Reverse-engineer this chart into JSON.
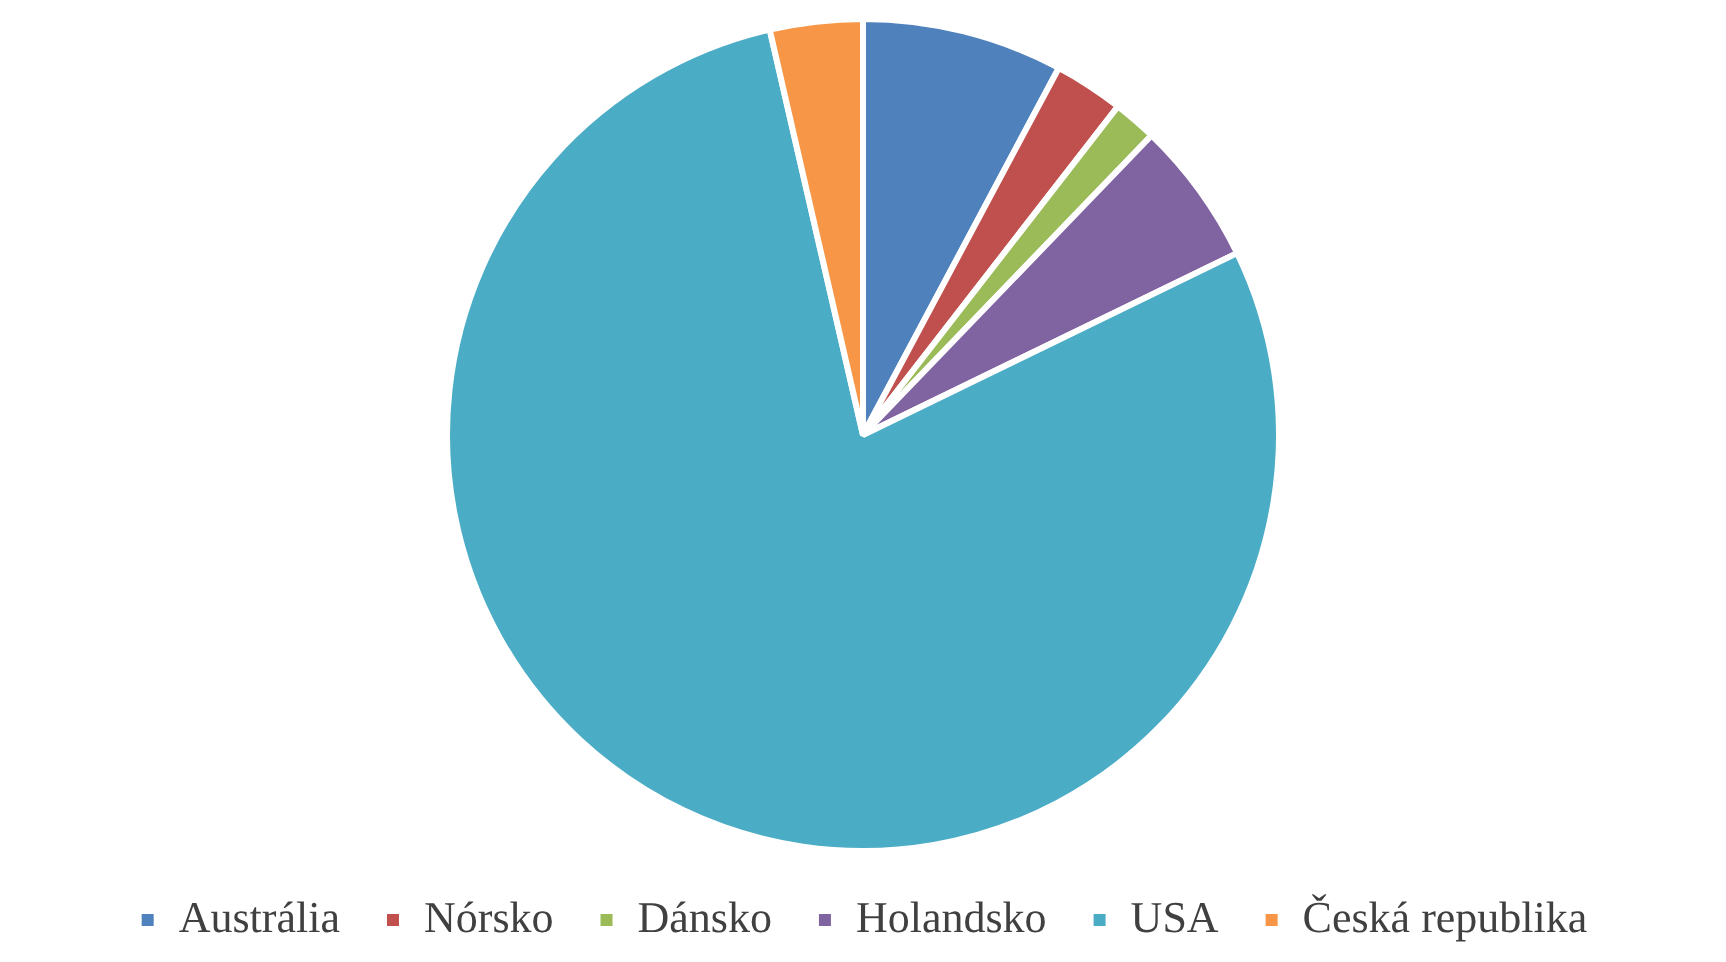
{
  "chart_data": {
    "type": "pie",
    "categories": [
      "Austrália",
      "Nórsko",
      "Dánsko",
      "Holandsko",
      "USA",
      "Česká republika"
    ],
    "values": [
      7.8,
      2.7,
      1.7,
      5.6,
      78.6,
      3.6
    ],
    "colors": [
      "#4f81bd",
      "#c0504d",
      "#9bbb59",
      "#8064a2",
      "#4bacc6",
      "#f79646"
    ],
    "legend": "bottom"
  }
}
